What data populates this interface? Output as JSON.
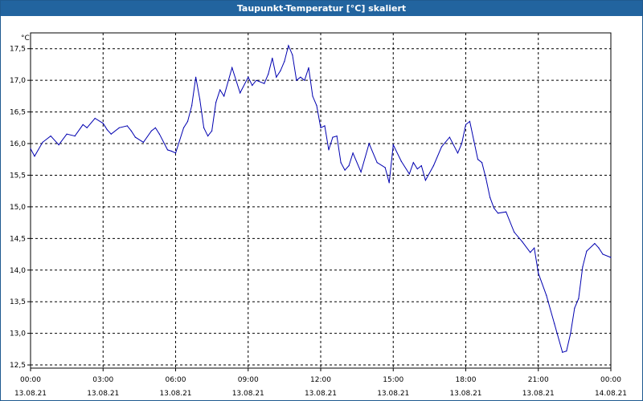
{
  "window": {
    "title": "Taupunkt-Temperatur [°C] skaliert"
  },
  "chart_data": {
    "type": "line",
    "title": "Taupunkt-Temperatur [°C] skaliert",
    "ylabel": "°C",
    "xlabel": "",
    "ylim": [
      12.45,
      17.75
    ],
    "grid": true,
    "y_ticks": [
      12.5,
      13.0,
      13.5,
      14.0,
      14.5,
      15.0,
      15.5,
      16.0,
      16.5,
      17.0,
      17.5
    ],
    "y_tick_labels": [
      "12,5",
      "13,0",
      "13,5",
      "14,0",
      "14,5",
      "15,0",
      "15,5",
      "16,0",
      "16,5",
      "17,0",
      "17,5"
    ],
    "x_ticks": [
      {
        "time": "00:00",
        "date": "13.08.21"
      },
      {
        "time": "03:00",
        "date": "13.08.21"
      },
      {
        "time": "06:00",
        "date": "13.08.21"
      },
      {
        "time": "09:00",
        "date": "13.08.21"
      },
      {
        "time": "12:00",
        "date": "13.08.21"
      },
      {
        "time": "15:00",
        "date": "13.08.21"
      },
      {
        "time": "18:00",
        "date": "13.08.21"
      },
      {
        "time": "21:00",
        "date": "13.08.21"
      },
      {
        "time": "00:00",
        "date": "14.08.21"
      }
    ],
    "line_color": "#0000b0",
    "series": [
      {
        "x": [
          "00:00",
          "00:10",
          "00:30",
          "00:50",
          "01:10",
          "01:30",
          "01:50",
          "02:10",
          "02:20",
          "02:40",
          "03:00",
          "03:10",
          "03:20",
          "03:40",
          "04:00",
          "04:10",
          "04:20",
          "04:40",
          "05:00",
          "05:10",
          "05:20",
          "05:40",
          "05:50",
          "06:00",
          "06:10",
          "06:20",
          "06:30",
          "06:40",
          "06:50",
          "07:00",
          "07:10",
          "07:20",
          "07:30",
          "07:40",
          "07:50",
          "08:00",
          "08:20",
          "08:40",
          "09:00",
          "09:10",
          "09:20",
          "09:40",
          "09:50",
          "10:00",
          "10:10",
          "10:20",
          "10:30",
          "10:40",
          "10:50",
          "11:00",
          "11:10",
          "11:20",
          "11:30",
          "11:40",
          "11:50",
          "12:00",
          "12:10",
          "12:20",
          "12:30",
          "12:40",
          "12:50",
          "13:00",
          "13:10",
          "13:20",
          "13:40",
          "14:00",
          "14:20",
          "14:40",
          "14:50",
          "15:00",
          "15:20",
          "15:40",
          "15:50",
          "16:00",
          "16:10",
          "16:20",
          "16:40",
          "17:00",
          "17:20",
          "17:40",
          "17:50",
          "18:00",
          "18:10",
          "18:20",
          "18:30",
          "18:40",
          "18:50",
          "19:00",
          "19:10",
          "19:20",
          "19:40",
          "20:00",
          "20:20",
          "20:40",
          "20:50",
          "21:00",
          "21:20",
          "21:40",
          "22:00",
          "22:10",
          "22:20",
          "22:30",
          "22:40",
          "22:50",
          "23:00",
          "23:20",
          "23:30",
          "23:40",
          "24:00"
        ],
        "values": [
          15.92,
          15.8,
          16.02,
          16.12,
          15.98,
          16.15,
          16.12,
          16.3,
          16.25,
          16.4,
          16.32,
          16.22,
          16.15,
          16.25,
          16.28,
          16.2,
          16.1,
          16.02,
          16.2,
          16.25,
          16.15,
          15.9,
          15.88,
          15.85,
          16.05,
          16.25,
          16.35,
          16.6,
          17.05,
          16.7,
          16.25,
          16.12,
          16.2,
          16.65,
          16.85,
          16.75,
          17.2,
          16.8,
          17.05,
          16.92,
          17.0,
          16.95,
          17.1,
          17.35,
          17.05,
          17.15,
          17.3,
          17.55,
          17.4,
          17.0,
          17.05,
          17.0,
          17.2,
          16.75,
          16.6,
          16.25,
          16.28,
          15.9,
          16.1,
          16.12,
          15.7,
          15.58,
          15.65,
          15.85,
          15.55,
          16.0,
          15.7,
          15.62,
          15.38,
          15.98,
          15.72,
          15.52,
          15.7,
          15.6,
          15.65,
          15.42,
          15.65,
          15.95,
          16.1,
          15.85,
          16.0,
          16.3,
          16.35,
          16.05,
          15.75,
          15.7,
          15.45,
          15.15,
          14.98,
          14.9,
          14.92,
          14.6,
          14.45,
          14.28,
          14.35,
          13.95,
          13.6,
          13.15,
          12.7,
          12.72,
          13.0,
          13.4,
          13.55,
          14.05,
          14.3,
          14.42,
          14.35,
          14.25,
          14.2
        ]
      }
    ]
  }
}
